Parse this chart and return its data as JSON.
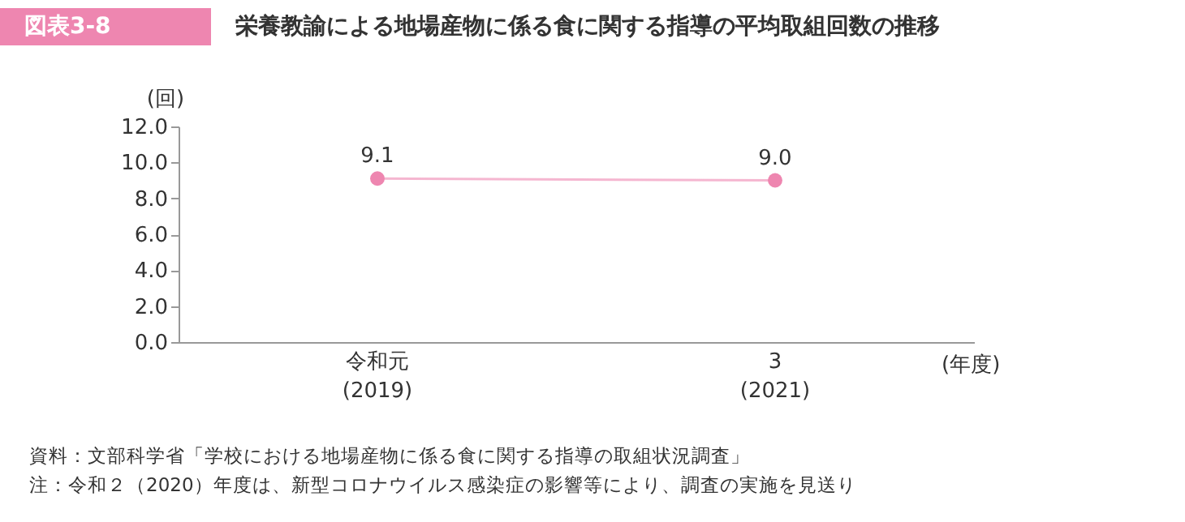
{
  "chart_data": {
    "type": "line",
    "title": "図表3-8",
    "subtitle": "栄養教諭による地場産物に係る食に関する指導の平均取組回数の推移",
    "categories": [
      "令和元\n(2019)",
      "3\n(2021)"
    ],
    "series": [
      {
        "color": "#ee86b0",
        "values": [
          9.1,
          9.0
        ],
        "value_labels": [
          "9.1",
          "9.0"
        ]
      }
    ],
    "marker": "circle",
    "line_style": "solid",
    "grid": false,
    "ylabel": "(回)",
    "xlabel": "(年度)",
    "ylim": [
      0,
      12
    ],
    "yticks": [
      {
        "value": 0,
        "label": "0.0"
      },
      {
        "value": 2,
        "label": "2.0"
      },
      {
        "value": 4,
        "label": "4.0"
      },
      {
        "value": 6,
        "label": "6.0"
      },
      {
        "value": 8,
        "label": "8.0"
      },
      {
        "value": 10,
        "label": "10.0"
      },
      {
        "value": 12,
        "label": "12.0"
      }
    ],
    "annotations": [
      "資料：文部科学省「学校における地場産物に係る食に関する指導の取組状況調査」",
      "注：令和２（2020）年度は、新型コロナウイルス感染症の影響等により、調査の実施を見送り"
    ]
  }
}
